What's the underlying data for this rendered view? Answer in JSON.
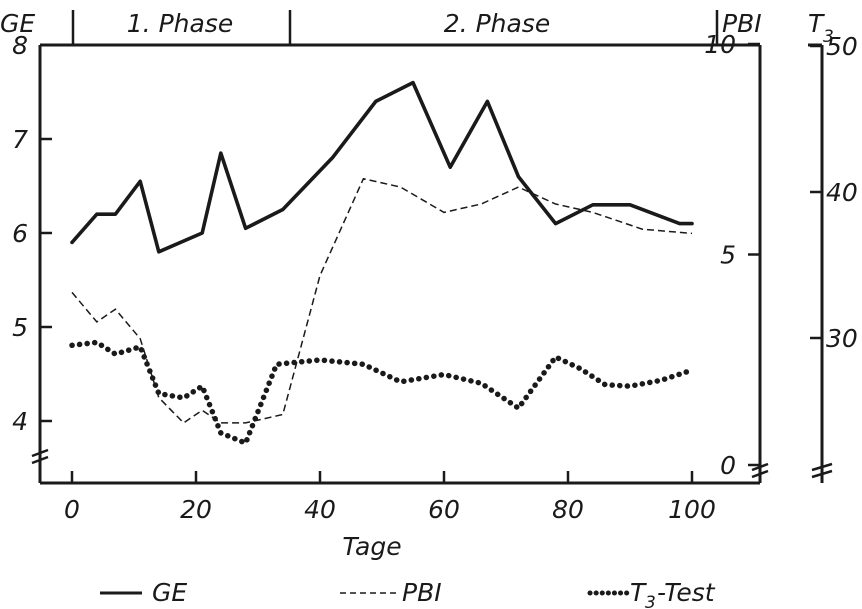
{
  "chart_data": {
    "type": "line",
    "xlabel": "Tage",
    "x_ticks": [
      "0",
      "20",
      "40",
      "60",
      "80",
      "100"
    ],
    "xlim": [
      0,
      105
    ],
    "phases": [
      {
        "label": "1. Phase",
        "range": [
          0,
          34
        ]
      },
      {
        "label": "2. Phase",
        "range": [
          34,
          100
        ]
      }
    ],
    "axes": [
      {
        "label": "GE",
        "side": "left",
        "ylim": [
          3.5,
          8
        ],
        "ticks": [
          "4",
          "5",
          "6",
          "7",
          "8"
        ],
        "axis_break": true
      },
      {
        "label": "PBI",
        "side": "right-inner",
        "ylim": [
          0,
          10
        ],
        "ticks": [
          "0",
          "5",
          "10"
        ],
        "axis_break": true
      },
      {
        "label": "T3",
        "side": "right-outer",
        "ylim": [
          15,
          50
        ],
        "ticks": [
          "30",
          "40",
          "50"
        ],
        "axis_break": true
      }
    ],
    "series": [
      {
        "name": "GE",
        "axis": "GE",
        "style": "solid",
        "x": [
          0,
          4,
          7,
          11,
          14,
          21,
          24,
          28,
          34,
          42,
          49,
          55,
          61,
          67,
          72,
          78,
          84,
          90,
          98,
          100
        ],
        "y": [
          5.9,
          6.2,
          6.2,
          6.55,
          5.8,
          6.0,
          6.85,
          6.05,
          6.25,
          6.8,
          7.4,
          7.6,
          6.7,
          7.4,
          6.6,
          6.1,
          6.3,
          6.3,
          6.1,
          6.1
        ]
      },
      {
        "name": "PBI",
        "axis": "PBI",
        "style": "dashed",
        "x": [
          0,
          4,
          7,
          11,
          14,
          18,
          21,
          24,
          28,
          34,
          40,
          47,
          53,
          60,
          66,
          72,
          78,
          84,
          92,
          100
        ],
        "y": [
          4.1,
          3.4,
          3.7,
          3.0,
          1.6,
          1.0,
          1.3,
          1.0,
          1.0,
          1.2,
          4.5,
          6.8,
          6.6,
          6.0,
          6.2,
          6.6,
          6.2,
          6.0,
          5.6,
          5.5
        ]
      },
      {
        "name": "T3-Test",
        "axis": "T3",
        "style": "dotted",
        "x": [
          0,
          4,
          7,
          11,
          14,
          18,
          21,
          24,
          28,
          33,
          40,
          47,
          53,
          60,
          66,
          72,
          78,
          82,
          86,
          90,
          95,
          100
        ],
        "y": [
          29.5,
          29.7,
          28.9,
          29.4,
          26.2,
          25.9,
          26.7,
          23.5,
          22.8,
          28.2,
          28.5,
          28.2,
          27.0,
          27.5,
          26.9,
          25.2,
          28.7,
          27.9,
          26.8,
          26.7,
          27.1,
          27.8
        ]
      }
    ],
    "legend": {
      "placement": "bottom",
      "entries": [
        {
          "name": "GE",
          "style": "solid"
        },
        {
          "name": "PBI",
          "style": "dashed"
        },
        {
          "name": "T3-Test",
          "style": "dotted"
        }
      ]
    },
    "grid": false
  }
}
